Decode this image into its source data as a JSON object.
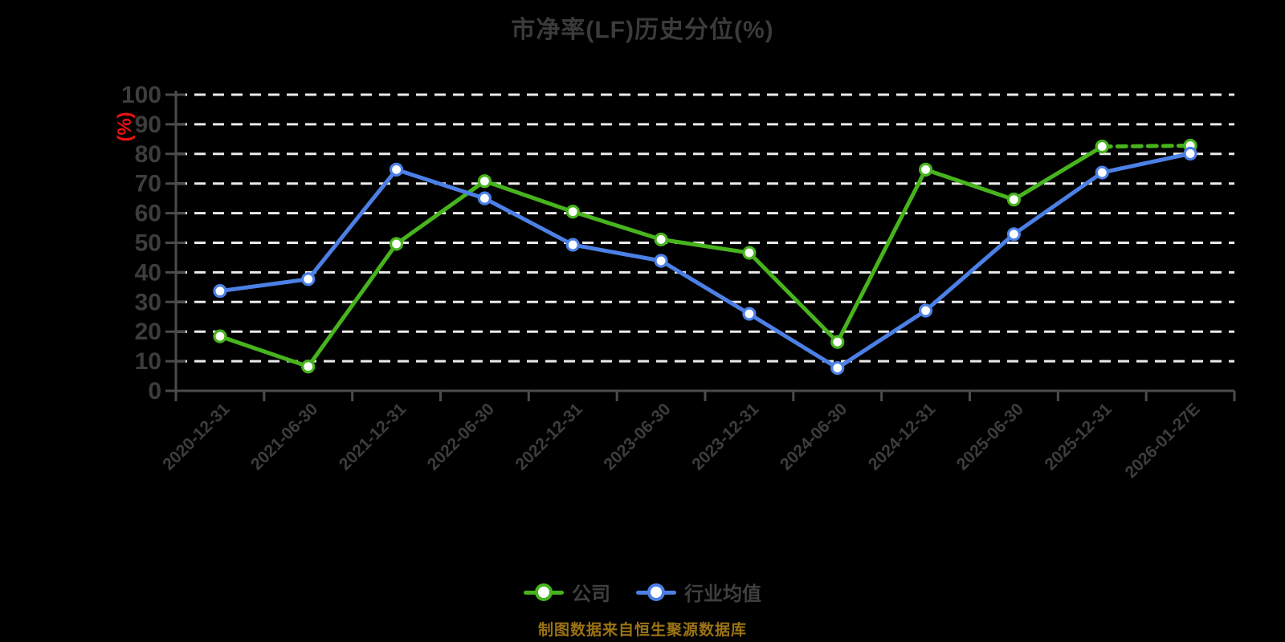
{
  "title": "市净率(LF)历史分位(%)",
  "y_axis_unit": "(%)",
  "footer": "制图数据来自恒生聚源数据库",
  "legend": {
    "items": [
      {
        "label": "公司",
        "color": "#47b41d"
      },
      {
        "label": "行业均值",
        "color": "#4c80e6"
      }
    ]
  },
  "colors": {
    "background": "#000000",
    "title_text": "#3b3b3b",
    "axis_line": "#4b4b4b",
    "tick_text": "#3d3d3d",
    "gridline": "#ebebeb",
    "legend_text": "#3f3f3f",
    "y_unit_text": "#ee1111",
    "footer_text": "#9a7313",
    "marker_fill": "#ffffff"
  },
  "chart_data": {
    "type": "line",
    "title": "市净率(LF)历史分位(%)",
    "ylabel": "(%)",
    "ylim": [
      0,
      100
    ],
    "y_ticks": [
      0,
      10,
      20,
      30,
      40,
      50,
      60,
      70,
      80,
      90,
      100
    ],
    "grid": "horizontal-dashed-white",
    "legend_position": "bottom-center",
    "x_label_rotation_deg": 45,
    "categories": [
      "2020-12-31",
      "2021-06-30",
      "2021-12-31",
      "2022-06-30",
      "2022-12-31",
      "2023-06-30",
      "2023-12-31",
      "2024-06-30",
      "2024-12-31",
      "2025-06-30",
      "2025-12-31",
      "2026-01-27E"
    ],
    "series": [
      {
        "name": "公司",
        "color": "#47b41d",
        "style": "solid_with_dashed_final_segment",
        "values": [
          18.4,
          8.2,
          49.6,
          70.8,
          60.5,
          51.1,
          46.6,
          16.5,
          74.7,
          64.6,
          82.5,
          82.8
        ]
      },
      {
        "name": "行业均值",
        "color": "#4c80e6",
        "style": "solid",
        "values": [
          33.7,
          37.7,
          74.7,
          65,
          49.3,
          43.9,
          26,
          7.7,
          27.1,
          52.9,
          73.7,
          80.1
        ]
      }
    ]
  }
}
